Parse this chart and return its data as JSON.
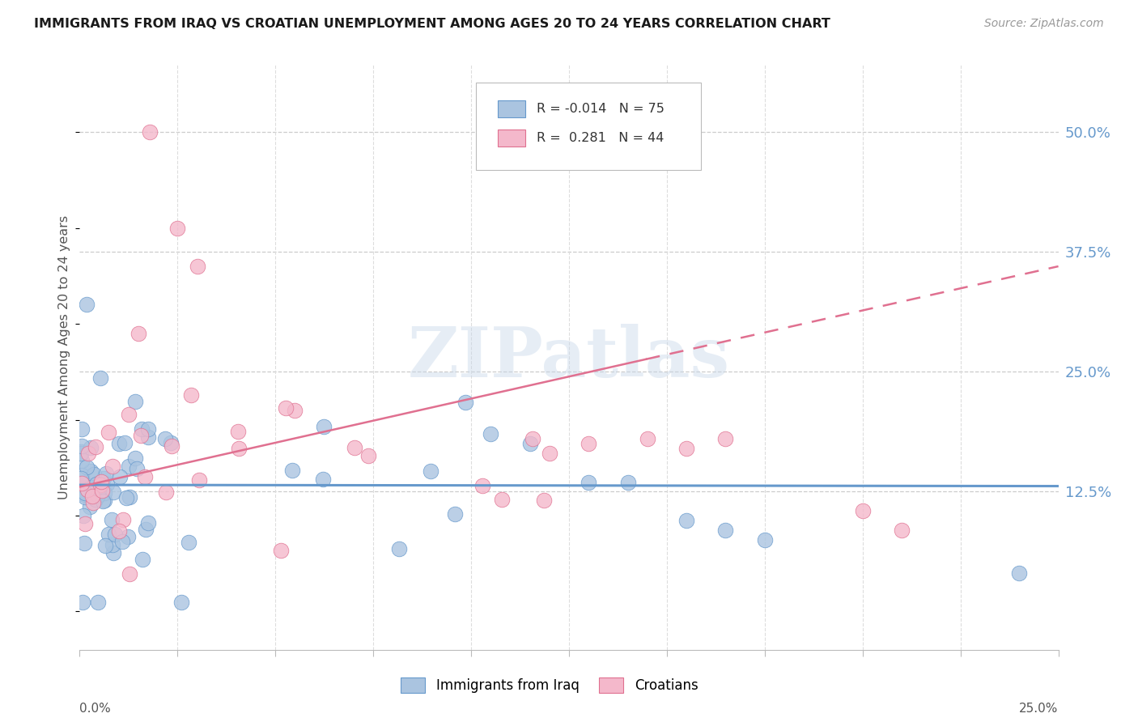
{
  "title": "IMMIGRANTS FROM IRAQ VS CROATIAN UNEMPLOYMENT AMONG AGES 20 TO 24 YEARS CORRELATION CHART",
  "source": "Source: ZipAtlas.com",
  "ylabel": "Unemployment Among Ages 20 to 24 years",
  "ytick_labels": [
    "12.5%",
    "25.0%",
    "37.5%",
    "50.0%"
  ],
  "ytick_values": [
    0.125,
    0.25,
    0.375,
    0.5
  ],
  "xmin": 0.0,
  "xmax": 0.25,
  "ymin": -0.04,
  "ymax": 0.57,
  "legend_entries": [
    {
      "label": "Immigrants from Iraq",
      "R": "-0.014",
      "N": "75",
      "color": "#a8c4e0"
    },
    {
      "label": "Croatians",
      "R": "0.281",
      "N": "44",
      "color": "#f4b8cb"
    }
  ],
  "watermark": "ZIPatlas",
  "blue_color": "#6699cc",
  "pink_color": "#e07090",
  "blue_fill": "#aac4e0",
  "pink_fill": "#f4b8cb",
  "trend_blue_slope": -0.005,
  "trend_blue_intercept": 0.132,
  "trend_pink_slope": 0.92,
  "trend_pink_intercept": 0.13,
  "trend_pink_dash_start": 0.145
}
